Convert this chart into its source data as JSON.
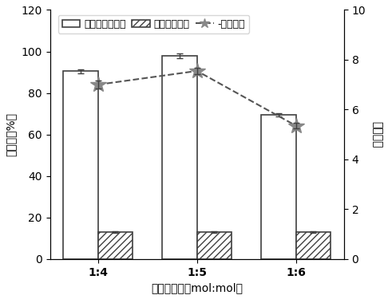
{
  "categories": [
    "1:4",
    "1:5",
    "1:6"
  ],
  "mic_values": [
    90.5,
    98.0,
    69.5
  ],
  "mic_errors": [
    1.0,
    1.2,
    0.8
  ],
  "nic_values": [
    13.0,
    13.0,
    13.0
  ],
  "nic_errors": [
    0.5,
    0.5,
    0.5
  ],
  "if_values": [
    7.0,
    7.55,
    5.35
  ],
  "if_errors": [
    0.15,
    0.12,
    0.12
  ],
  "left_ylim": [
    0,
    120
  ],
  "left_yticks": [
    0,
    20,
    40,
    60,
    80,
    100,
    120
  ],
  "right_ylim": [
    0,
    10
  ],
  "right_yticks": [
    0,
    2,
    4,
    6,
    8,
    10
  ],
  "xlabel": "模板：单体（mol:mol）",
  "ylabel_left": "回收率（%）",
  "ylabel_right": "印迹因子",
  "legend_mic": "分子印迹整体柱",
  "legend_nic": "非印迹整体柱",
  "legend_if": "印迹因子",
  "bar_width": 0.35,
  "mic_color": "white",
  "mic_edgecolor": "#404040",
  "nic_edgecolor": "#404040",
  "if_color": "#888888",
  "if_linecolor": "#555555",
  "background_color": "white"
}
